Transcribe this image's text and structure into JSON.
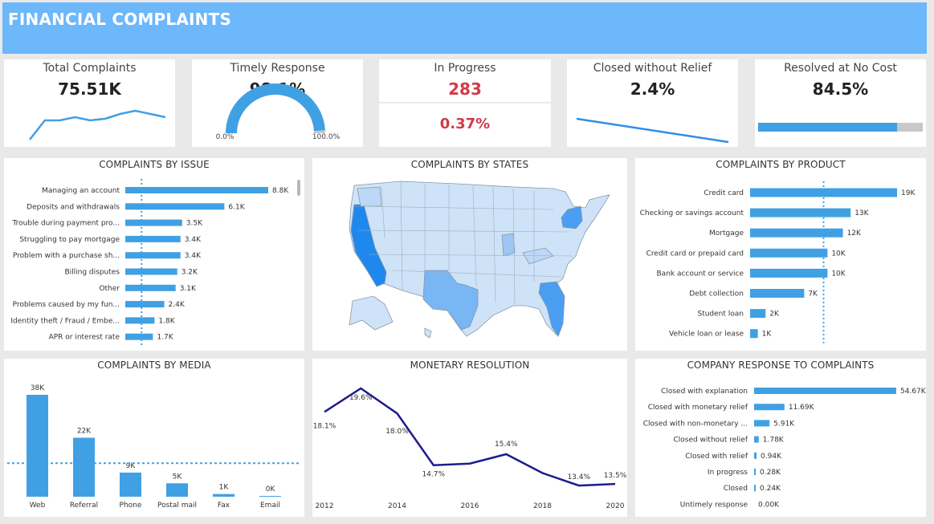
{
  "header": {
    "title": "FINANCIAL COMPLAINTS"
  },
  "colors": {
    "accent": "#40a0e4",
    "header": "#6db7fb",
    "red": "#d13a47",
    "navy": "#1c1c8c",
    "gray": "#c8c8c8"
  },
  "kpis": {
    "total": {
      "title": "Total Complaints",
      "value": "75.51K",
      "trend": [
        3,
        9,
        9,
        10,
        9,
        9.5,
        11,
        12,
        11,
        10
      ]
    },
    "timely": {
      "title": "Timely Response",
      "value": "98.1%",
      "fraction": 0.981,
      "min_label": "0.0%",
      "max_label": "100.0%"
    },
    "progress": {
      "title": "In Progress",
      "value": "283",
      "pct": "0.37%"
    },
    "closed": {
      "title": "Closed without Relief",
      "value": "2.4%"
    },
    "resolved": {
      "title": "Resolved at No Cost",
      "value": "84.5%",
      "fraction": 0.845
    }
  },
  "panels": {
    "issue": "COMPLAINTS BY ISSUE",
    "states": "COMPLAINTS BY STATES",
    "product": "COMPLAINTS BY PRODUCT",
    "media": "COMPLAINTS BY MEDIA",
    "monetary": "MONETARY RESOLUTION",
    "response": "COMPANY RESPONSE TO COMPLAINTS"
  },
  "chart_data": [
    {
      "id": "issue",
      "type": "bar",
      "orientation": "horizontal",
      "categories": [
        "Managing an account",
        "Deposits and withdrawals",
        "Trouble during payment pro...",
        "Struggling to pay mortgage",
        "Problem with a purchase sh...",
        "Billing disputes",
        "Other",
        "Problems caused by my fun...",
        "Identity theft / Fraud / Embe...",
        "APR or interest rate"
      ],
      "values": [
        8.8,
        6.1,
        3.5,
        3.4,
        3.4,
        3.2,
        3.1,
        2.4,
        1.8,
        1.7
      ],
      "labels": [
        "8.8K",
        "6.1K",
        "3.5K",
        "3.4K",
        "3.4K",
        "3.2K",
        "3.1K",
        "2.4K",
        "1.8K",
        "1.7K"
      ],
      "xlim": [
        0,
        8.8
      ],
      "reference_line": 1.0
    },
    {
      "id": "product",
      "type": "bar",
      "orientation": "horizontal",
      "categories": [
        "Credit card",
        "Checking or savings account",
        "Mortgage",
        "Credit card or prepaid card",
        "Bank account or service",
        "Debt collection",
        "Student loan",
        "Vehicle loan or lease"
      ],
      "values": [
        19,
        13,
        12,
        10,
        10,
        7,
        2,
        1
      ],
      "labels": [
        "19K",
        "13K",
        "12K",
        "10K",
        "10K",
        "7K",
        "2K",
        "1K"
      ],
      "xlim": [
        0,
        19
      ],
      "reference_line": 9.5
    },
    {
      "id": "media",
      "type": "bar",
      "categories": [
        "Web",
        "Referral",
        "Phone",
        "Postal mail",
        "Fax",
        "Email"
      ],
      "values": [
        38,
        22,
        9,
        5,
        1,
        0
      ],
      "labels": [
        "38K",
        "22K",
        "9K",
        "5K",
        "1K",
        "0K"
      ],
      "ylim": [
        0,
        38
      ],
      "reference_line": 12.5
    },
    {
      "id": "monetary",
      "type": "line",
      "x": [
        2012,
        2013,
        2014,
        2015,
        2016,
        2017,
        2018,
        2019,
        2020
      ],
      "values": [
        18.1,
        19.6,
        18.0,
        14.7,
        14.8,
        15.4,
        14.2,
        13.4,
        13.5
      ],
      "labels": [
        "18.1%",
        "19.6%",
        "18.0%",
        "14.7%",
        "",
        "15.4%",
        "",
        "13.4%",
        "13.5%"
      ],
      "x_ticks": [
        "2012",
        "2014",
        "2016",
        "2018",
        "2020"
      ],
      "ylim": [
        13.2,
        19.7
      ]
    },
    {
      "id": "response",
      "type": "bar",
      "orientation": "horizontal",
      "categories": [
        "Closed with explanation",
        "Closed with monetary relief",
        "Closed with non-monetary ...",
        "Closed without relief",
        "Closed with relief",
        "In progress",
        "Closed",
        "Untimely response"
      ],
      "values": [
        54.67,
        11.69,
        5.91,
        1.78,
        0.94,
        0.28,
        0.24,
        0.0
      ],
      "labels": [
        "54.67K",
        "11.69K",
        "5.91K",
        "1.78K",
        "0.94K",
        "0.28K",
        "0.24K",
        "0.00K"
      ],
      "xlim": [
        0,
        54.67
      ]
    }
  ]
}
